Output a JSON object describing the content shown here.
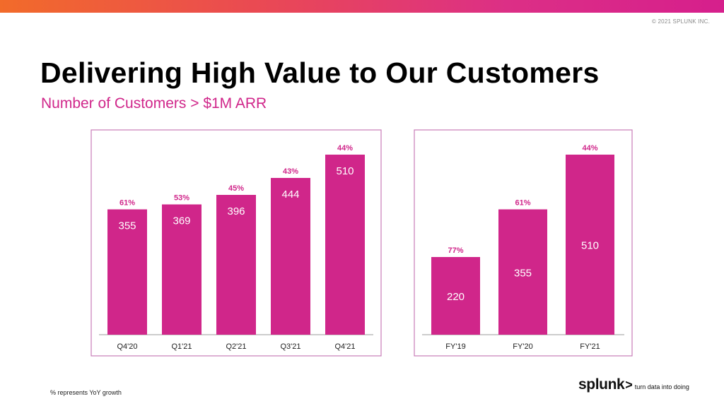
{
  "copyright": "© 2021 SPLUNK INC.",
  "title": "Delivering High Value to Our Customers",
  "subtitle": "Number of Customers > $1M ARR",
  "footnote": "% represents YoY growth",
  "logo": {
    "word": "splunk",
    "chevron": ">",
    "tagline": "turn data into doing"
  },
  "colors": {
    "bar": "#d0268a",
    "accent": "#d0268a",
    "frame": "#c77bb8",
    "axis": "#9a9a9a",
    "topbar_start": "#f26b2a",
    "topbar_end": "#d61f8c"
  },
  "chart_data": [
    {
      "type": "bar",
      "categories": [
        "Q4'20",
        "Q1'21",
        "Q2'21",
        "Q3'21",
        "Q4'21"
      ],
      "values": [
        355,
        369,
        396,
        444,
        510
      ],
      "growth_labels": [
        "61%",
        "53%",
        "45%",
        "43%",
        "44%"
      ],
      "ylim": [
        0,
        520
      ],
      "grid": false,
      "title": "",
      "xlabel": "",
      "ylabel": ""
    },
    {
      "type": "bar",
      "categories": [
        "FY'19",
        "FY'20",
        "FY'21"
      ],
      "values": [
        220,
        355,
        510
      ],
      "growth_labels": [
        "77%",
        "61%",
        "44%"
      ],
      "ylim": [
        0,
        520
      ],
      "grid": false,
      "title": "",
      "xlabel": "",
      "ylabel": ""
    }
  ]
}
